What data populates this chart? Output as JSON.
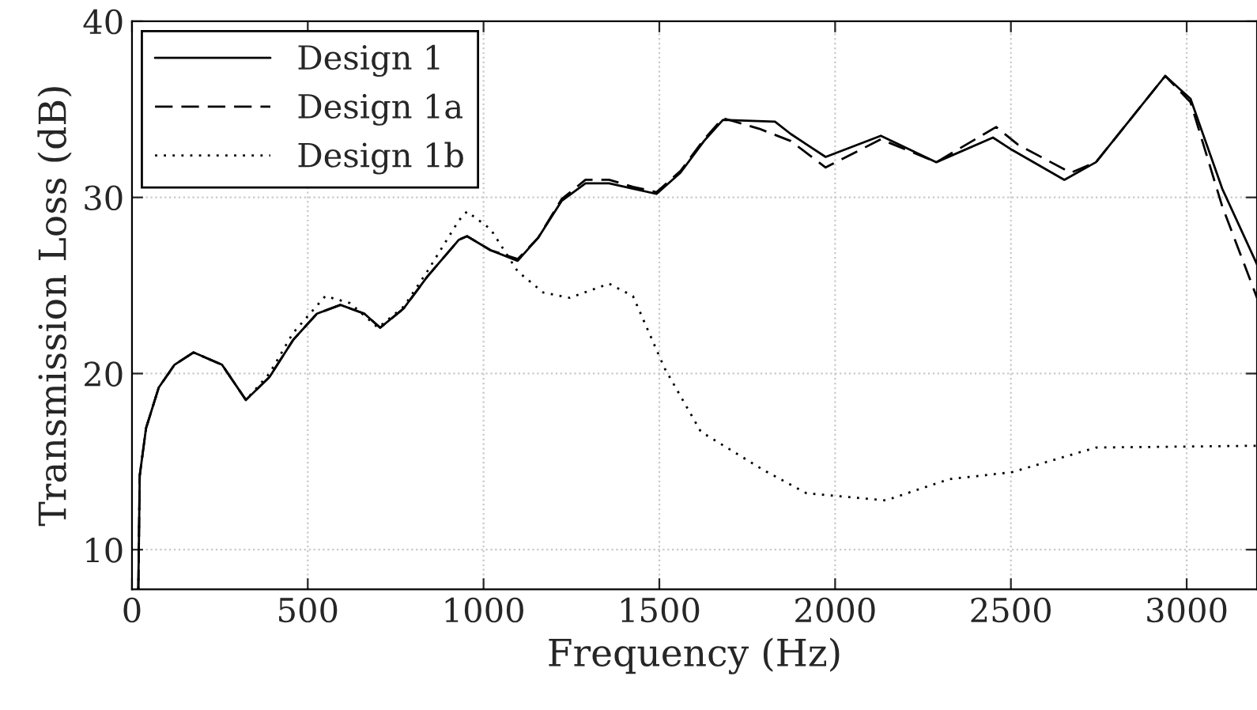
{
  "chart_data": {
    "type": "line",
    "xlabel": "Frequency (Hz)",
    "ylabel": "Transmission Loss (dB)",
    "xlim": [
      0,
      3200
    ],
    "ylim": [
      7.75,
      40
    ],
    "xticks": [
      0,
      500,
      1000,
      1500,
      2000,
      2500,
      3000
    ],
    "yticks": [
      10,
      20,
      30,
      40
    ],
    "grid": true,
    "legend": "top left",
    "series": [
      {
        "name": "Design 1",
        "color": "#000000",
        "line_style": "solid",
        "x": [
          18,
          22,
          40,
          76,
          121,
          175,
          256,
          324,
          391,
          458,
          526,
          593,
          661,
          706,
          773,
          840,
          930,
          953,
          1020,
          1097,
          1155,
          1222,
          1290,
          1357,
          1425,
          1492,
          1560,
          1627,
          1681,
          1829,
          1874,
          1973,
          2130,
          2288,
          2449,
          2503,
          2652,
          2742,
          2939,
          3011,
          3101,
          3200
        ],
        "values": [
          7.75,
          14.2,
          16.9,
          19.2,
          20.5,
          21.2,
          20.5,
          18.5,
          19.8,
          21.9,
          23.4,
          23.9,
          23.4,
          22.6,
          23.7,
          25.5,
          27.6,
          27.8,
          27.0,
          26.4,
          27.7,
          29.8,
          30.8,
          30.8,
          30.5,
          30.2,
          31.4,
          33.2,
          34.4,
          34.3,
          33.6,
          32.3,
          33.5,
          32.0,
          33.4,
          32.7,
          31.0,
          32.0,
          36.9,
          35.6,
          30.5,
          26.2
        ]
      },
      {
        "name": "Design 1a",
        "color": "#000000",
        "line_style": "dashed",
        "x": [
          18,
          22,
          40,
          76,
          121,
          175,
          256,
          324,
          391,
          458,
          526,
          593,
          661,
          706,
          773,
          840,
          930,
          953,
          1020,
          1097,
          1155,
          1222,
          1290,
          1357,
          1425,
          1492,
          1560,
          1627,
          1681,
          1784,
          1874,
          1973,
          2130,
          2288,
          2458,
          2520,
          2670,
          2742,
          2939,
          3011,
          3101,
          3200
        ],
        "values": [
          7.75,
          14.2,
          16.9,
          19.2,
          20.5,
          21.2,
          20.5,
          18.5,
          19.8,
          21.9,
          23.4,
          23.9,
          23.4,
          22.6,
          23.7,
          25.5,
          27.6,
          27.8,
          27.0,
          26.5,
          27.7,
          29.9,
          31.0,
          31.0,
          30.6,
          30.3,
          31.5,
          33.3,
          34.5,
          33.9,
          33.2,
          31.7,
          33.3,
          32.0,
          34.0,
          33.0,
          31.4,
          32.0,
          36.9,
          35.4,
          29.5,
          24.3
        ]
      },
      {
        "name": "Design 1b",
        "color": "#000000",
        "line_style": "dotted",
        "x": [
          18,
          22,
          40,
          76,
          121,
          175,
          256,
          324,
          391,
          458,
          550,
          620,
          700,
          773,
          840,
          930,
          953,
          1020,
          1097,
          1170,
          1245,
          1357,
          1425,
          1515,
          1618,
          1798,
          1919,
          2144,
          2324,
          2503,
          2742,
          3200
        ],
        "values": [
          7.75,
          14.2,
          16.9,
          19.2,
          20.5,
          21.2,
          20.5,
          18.5,
          20.0,
          22.3,
          24.4,
          24.0,
          22.6,
          23.8,
          25.8,
          28.7,
          29.2,
          28.2,
          25.8,
          24.6,
          24.3,
          25.1,
          24.4,
          20.3,
          16.7,
          14.5,
          13.2,
          12.8,
          14.0,
          14.4,
          15.8,
          15.9
        ]
      }
    ]
  }
}
